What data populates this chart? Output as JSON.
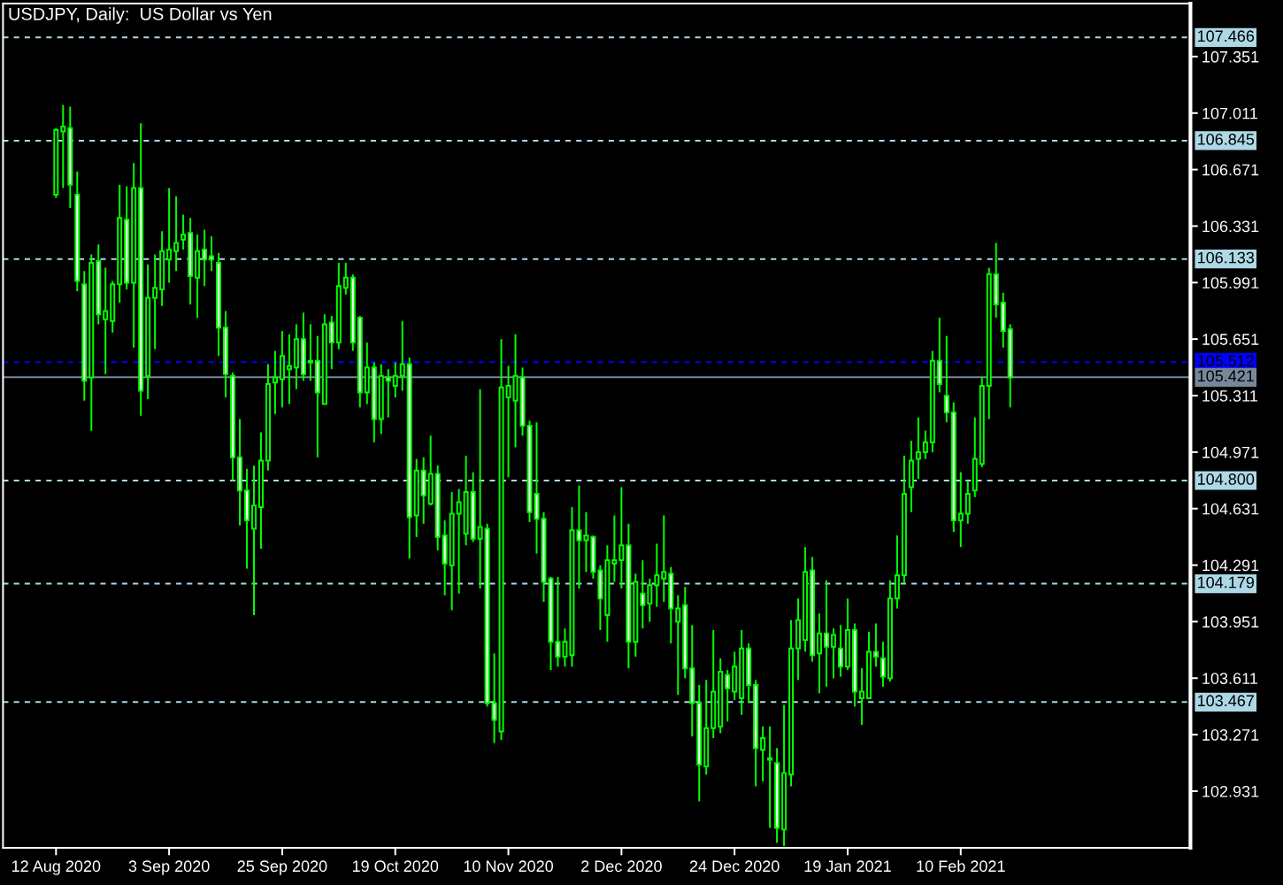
{
  "chart_data": {
    "type": "candlestick",
    "title": "USDJPY, Daily:  US Dollar vs Yen",
    "categories": [
      null,
      null,
      null,
      null,
      null,
      null,
      null,
      "12 Aug 2020",
      null,
      null,
      null,
      null,
      null,
      null,
      null,
      null,
      null,
      null,
      null,
      null,
      null,
      null,
      null,
      "3 Sep 2020",
      null,
      null,
      null,
      null,
      null,
      null,
      null,
      null,
      null,
      null,
      null,
      null,
      null,
      null,
      null,
      "25 Sep 2020",
      null,
      null,
      null,
      null,
      null,
      null,
      null,
      null,
      null,
      null,
      null,
      null,
      null,
      null,
      null,
      "19 Oct 2020",
      null,
      null,
      null,
      null,
      null,
      null,
      null,
      null,
      null,
      null,
      null,
      null,
      null,
      null,
      null,
      "10 Nov 2020",
      null,
      null,
      null,
      null,
      null,
      null,
      null,
      null,
      null,
      null,
      null,
      null,
      null,
      null,
      null,
      "2 Dec 2020",
      null,
      null,
      null,
      null,
      null,
      null,
      null,
      null,
      null,
      null,
      null,
      null,
      null,
      null,
      null,
      "24 Dec 2020",
      null,
      null,
      null,
      null,
      null,
      null,
      null,
      null,
      null,
      null,
      null,
      null,
      null,
      null,
      null,
      "19 Jan 2021",
      null,
      null,
      null,
      null,
      null,
      null,
      null,
      null,
      null,
      null,
      null,
      null,
      null,
      null,
      null,
      "10 Feb 2021",
      null,
      null,
      null,
      null,
      null,
      null,
      null,
      null,
      null,
      null,
      null,
      null,
      null,
      null,
      null,
      null,
      null,
      null,
      null,
      null,
      null,
      null,
      null,
      null,
      null,
      null,
      null,
      null,
      null,
      null,
      null,
      null
    ],
    "ohlc": [
      null,
      null,
      null,
      null,
      null,
      null,
      null,
      [
        106.52,
        106.92,
        106.5,
        106.91
      ],
      [
        106.9,
        107.06,
        106.56,
        106.93
      ],
      [
        106.92,
        107.05,
        106.44,
        106.58
      ],
      [
        106.52,
        106.66,
        105.94,
        106.0
      ],
      [
        105.98,
        106.06,
        105.28,
        105.4
      ],
      [
        105.42,
        106.16,
        105.1,
        106.11
      ],
      [
        106.12,
        106.22,
        105.74,
        105.8
      ],
      [
        105.77,
        106.08,
        105.44,
        105.82
      ],
      [
        105.76,
        106.0,
        105.69,
        105.98
      ],
      [
        105.98,
        106.58,
        105.87,
        106.38
      ],
      [
        106.37,
        106.57,
        105.95,
        105.99
      ],
      [
        105.99,
        106.71,
        105.6,
        106.56
      ],
      [
        106.56,
        106.95,
        105.19,
        105.34
      ],
      [
        105.43,
        106.1,
        105.29,
        105.9
      ],
      [
        105.9,
        106.16,
        105.59,
        105.96
      ],
      [
        105.95,
        106.3,
        105.85,
        106.18
      ],
      [
        106.13,
        106.56,
        105.99,
        106.19
      ],
      [
        106.18,
        106.51,
        106.06,
        106.23
      ],
      [
        106.25,
        106.4,
        106.19,
        106.28
      ],
      [
        106.29,
        106.38,
        105.86,
        106.03
      ],
      [
        106.02,
        106.28,
        105.78,
        106.18
      ],
      [
        106.19,
        106.31,
        105.97,
        106.13
      ],
      [
        106.15,
        106.27,
        106.06,
        106.13
      ],
      [
        106.11,
        106.17,
        105.55,
        105.72
      ],
      [
        105.72,
        105.82,
        105.3,
        105.44
      ],
      [
        105.43,
        105.45,
        104.8,
        104.94
      ],
      [
        104.94,
        105.17,
        104.53,
        104.74
      ],
      [
        104.74,
        104.87,
        104.27,
        104.56
      ],
      [
        104.51,
        104.89,
        103.99,
        104.65
      ],
      [
        104.64,
        105.09,
        104.39,
        104.92
      ],
      [
        104.92,
        105.5,
        104.86,
        105.38
      ],
      [
        105.39,
        105.58,
        105.2,
        105.42
      ],
      [
        105.41,
        105.7,
        105.24,
        105.55
      ],
      [
        105.47,
        105.68,
        105.26,
        105.49
      ],
      [
        105.48,
        105.74,
        105.35,
        105.65
      ],
      [
        105.65,
        105.81,
        105.4,
        105.44
      ],
      [
        105.51,
        105.74,
        105.4,
        105.52
      ],
      [
        105.52,
        105.67,
        104.94,
        105.33
      ],
      [
        105.26,
        105.8,
        105.26,
        105.74
      ],
      [
        105.75,
        105.79,
        105.47,
        105.63
      ],
      [
        105.63,
        106.11,
        105.59,
        105.97
      ],
      [
        105.96,
        106.11,
        105.92,
        106.02
      ],
      [
        106.02,
        106.04,
        105.58,
        105.63
      ],
      [
        105.78,
        105.79,
        105.24,
        105.33
      ],
      [
        105.33,
        105.63,
        105.26,
        105.48
      ],
      [
        105.48,
        105.51,
        105.03,
        105.17
      ],
      [
        105.17,
        105.5,
        105.08,
        105.43
      ],
      [
        105.42,
        105.47,
        105.18,
        105.4
      ],
      [
        105.37,
        105.51,
        105.3,
        105.43
      ],
      [
        105.43,
        105.76,
        105.34,
        105.5
      ],
      [
        105.5,
        105.54,
        104.33,
        104.58
      ],
      [
        104.59,
        104.93,
        104.46,
        104.86
      ],
      [
        104.86,
        104.94,
        104.54,
        104.71
      ],
      [
        104.66,
        105.07,
        104.65,
        104.84
      ],
      [
        104.84,
        104.89,
        104.38,
        104.46
      ],
      [
        104.47,
        104.56,
        104.11,
        104.3
      ],
      [
        104.29,
        104.73,
        104.02,
        104.6
      ],
      [
        104.6,
        104.75,
        104.12,
        104.67
      ],
      [
        104.48,
        104.95,
        104.41,
        104.73
      ],
      [
        104.73,
        104.85,
        104.43,
        104.45
      ],
      [
        104.45,
        105.35,
        104.15,
        104.52
      ],
      [
        104.51,
        104.54,
        103.44,
        103.46
      ],
      [
        103.46,
        103.76,
        103.22,
        103.36
      ],
      [
        103.29,
        105.65,
        103.24,
        105.36
      ],
      [
        105.3,
        105.49,
        104.82,
        105.37
      ],
      [
        105.28,
        105.68,
        105.0,
        105.43
      ],
      [
        105.42,
        105.48,
        105.07,
        105.13
      ],
      [
        105.13,
        105.16,
        104.55,
        104.61
      ],
      [
        104.72,
        105.15,
        104.36,
        104.57
      ],
      [
        104.57,
        104.61,
        104.07,
        104.19
      ],
      [
        104.21,
        104.22,
        103.66,
        103.83
      ],
      [
        103.83,
        104.22,
        103.68,
        103.74
      ],
      [
        103.74,
        103.91,
        103.68,
        103.83
      ],
      [
        103.75,
        104.64,
        103.68,
        104.5
      ],
      [
        104.5,
        104.77,
        104.15,
        104.44
      ],
      [
        104.44,
        104.61,
        104.25,
        104.47
      ],
      [
        104.46,
        104.47,
        104.21,
        104.25
      ],
      [
        104.26,
        104.29,
        103.9,
        104.09
      ],
      [
        103.99,
        104.41,
        103.83,
        104.32
      ],
      [
        104.3,
        104.59,
        104.19,
        104.32
      ],
      [
        104.32,
        104.76,
        104.15,
        104.41
      ],
      [
        104.41,
        104.54,
        103.67,
        103.83
      ],
      [
        103.83,
        104.24,
        103.74,
        104.19
      ],
      [
        104.12,
        104.32,
        103.91,
        104.05
      ],
      [
        104.06,
        104.21,
        103.95,
        104.17
      ],
      [
        104.17,
        104.42,
        104.04,
        104.23
      ],
      [
        104.21,
        104.59,
        104.07,
        104.25
      ],
      [
        104.24,
        104.28,
        103.82,
        104.03
      ],
      [
        103.95,
        104.11,
        103.51,
        104.03
      ],
      [
        104.05,
        104.16,
        103.61,
        103.67
      ],
      [
        103.67,
        103.93,
        103.26,
        103.46
      ],
      [
        103.46,
        103.57,
        102.87,
        103.09
      ],
      [
        103.08,
        103.6,
        103.03,
        103.31
      ],
      [
        103.31,
        103.9,
        103.25,
        103.53
      ],
      [
        103.32,
        103.73,
        103.28,
        103.65
      ],
      [
        103.63,
        103.66,
        103.35,
        103.55
      ],
      [
        103.53,
        103.77,
        103.48,
        103.68
      ],
      [
        103.49,
        103.9,
        103.39,
        103.79
      ],
      [
        103.79,
        103.82,
        103.46,
        103.57
      ],
      [
        103.57,
        103.6,
        102.96,
        103.19
      ],
      [
        103.18,
        103.32,
        102.99,
        103.25
      ],
      [
        103.13,
        103.32,
        102.71,
        103.12
      ],
      [
        103.1,
        103.19,
        102.62,
        102.71
      ],
      [
        102.7,
        103.45,
        102.6,
        103.04
      ],
      [
        103.03,
        103.96,
        102.96,
        103.79
      ],
      [
        103.79,
        104.09,
        103.6,
        103.96
      ],
      [
        103.84,
        104.4,
        103.77,
        104.25
      ],
      [
        104.26,
        104.34,
        103.71,
        103.75
      ],
      [
        103.76,
        104.0,
        103.52,
        103.88
      ],
      [
        103.88,
        104.2,
        103.56,
        103.8
      ],
      [
        103.8,
        103.91,
        103.61,
        103.87
      ],
      [
        103.79,
        103.93,
        103.62,
        103.68
      ],
      [
        103.68,
        104.09,
        103.66,
        103.9
      ],
      [
        103.9,
        103.94,
        103.44,
        103.53
      ],
      [
        103.49,
        103.67,
        103.33,
        103.53
      ],
      [
        103.49,
        103.89,
        103.49,
        103.77
      ],
      [
        103.77,
        103.94,
        103.68,
        103.74
      ],
      [
        103.73,
        103.83,
        103.56,
        103.62
      ],
      [
        103.61,
        104.2,
        103.59,
        104.09
      ],
      [
        104.09,
        104.47,
        104.03,
        104.23
      ],
      [
        104.23,
        104.95,
        104.18,
        104.72
      ],
      [
        104.76,
        105.04,
        104.61,
        104.92
      ],
      [
        104.93,
        105.18,
        104.81,
        104.97
      ],
      [
        104.97,
        105.1,
        104.93,
        105.03
      ],
      [
        105.03,
        105.58,
        104.97,
        105.52
      ],
      [
        105.52,
        105.78,
        105.33,
        105.38
      ],
      [
        105.31,
        105.67,
        105.15,
        105.21
      ],
      [
        105.21,
        105.27,
        104.49,
        104.56
      ],
      [
        104.56,
        104.85,
        104.4,
        104.6
      ],
      [
        104.6,
        104.8,
        104.54,
        104.72
      ],
      [
        104.74,
        105.18,
        104.7,
        104.93
      ],
      [
        104.9,
        105.42,
        104.88,
        105.37
      ],
      [
        105.37,
        106.08,
        105.17,
        106.04
      ],
      [
        106.04,
        106.23,
        105.78,
        105.86
      ],
      [
        105.87,
        105.93,
        105.6,
        105.7
      ],
      [
        105.71,
        105.74,
        105.24,
        105.42
      ],
      null,
      null,
      null,
      null,
      null,
      null,
      null,
      null,
      null,
      null,
      null,
      null,
      null,
      null,
      null,
      null,
      null,
      null,
      null,
      null,
      null,
      null,
      null,
      null,
      null
    ],
    "color": "#00ff00",
    "colors": [
      null,
      null,
      null,
      null,
      null,
      null,
      null,
      "#000000",
      "#000000",
      "#ffffff",
      "#ffffff",
      "#ffffff",
      "#000000",
      "#ffffff",
      "#000000",
      "#000000",
      "#000000",
      "#ffffff",
      "#000000",
      "#ffffff",
      "#000000",
      "#000000",
      "#000000",
      "#000000",
      "#000000",
      "#000000",
      "#ffffff",
      "#000000",
      "#ffffff",
      "#ffffff",
      "#ffffff",
      "#ffffff",
      "#ffffff",
      "#ffffff",
      "#ffffff",
      "#000000",
      "#000000",
      "#000000",
      "#000000",
      "#000000",
      "#000000",
      "#000000",
      "#ffffff",
      "#000000",
      "#ffffff",
      "#000000",
      "#ffffff",
      "#000000",
      "#000000",
      "#ffffff",
      "#ffffff",
      "#000000",
      "#ffffff",
      "#000000",
      "#ffffff",
      "#000000",
      "#000000",
      "#ffffff",
      "#000000",
      "#ffffff",
      "#000000",
      "#ffffff",
      "#ffffff",
      "#000000",
      "#000000",
      "#000000",
      "#ffffff",
      "#000000",
      "#ffffff",
      "#ffffff",
      "#000000",
      "#000000",
      "#000000",
      "#ffffff",
      "#ffffff",
      "#ffffff",
      "#ffffff",
      "#ffffff",
      "#ffffff",
      "#000000",
      "#000000",
      "#ffffff",
      "#000000",
      "#ffffff",
      "#ffffff",
      "#000000",
      "#000000",
      "#000000",
      "#ffffff",
      "#000000",
      "#ffffff",
      "#000000",
      "#000000",
      "#000000",
      "#ffffff",
      "#000000",
      "#ffffff",
      "#ffffff",
      "#ffffff",
      "#000000",
      "#000000",
      "#000000",
      "#ffffff",
      "#000000",
      "#000000",
      "#ffffff",
      "#ffffff",
      "#000000",
      "#ffffff",
      "#ffffff",
      "#000000",
      "#000000",
      "#000000",
      "#000000",
      "#ffffff",
      "#000000",
      "#ffffff",
      "#000000",
      "#ffffff",
      "#000000",
      "#ffffff",
      "#000000",
      "#000000",
      "#ffffff",
      "#ffffff",
      "#000000",
      "#000000",
      "#000000",
      "#000000",
      "#000000",
      "#000000",
      "#000000",
      "#ffffff",
      "#ffffff",
      "#ffffff",
      "#000000",
      "#000000",
      "#000000",
      "#000000",
      "#000000",
      "#ffffff",
      "#ffffff",
      "#ffffff",
      null,
      null,
      null,
      null,
      null,
      null,
      null,
      null,
      null,
      null,
      null,
      null,
      null,
      null,
      null,
      null,
      null,
      null,
      null,
      null,
      null,
      null,
      null,
      null,
      null
    ],
    "ylim": [
      102.59,
      107.67
    ],
    "yticks": [
      107.351,
      107.011,
      106.671,
      106.331,
      105.991,
      105.651,
      105.311,
      104.971,
      104.631,
      104.291,
      103.951,
      103.611,
      103.271,
      102.931
    ],
    "ref_lines": [
      {
        "axis": "y",
        "value": 107.466,
        "label": "107.466",
        "color": "#add8e6",
        "line_style": "dashed"
      },
      {
        "axis": "y",
        "value": 106.845,
        "label": "106.845",
        "color": "#add8e6",
        "line_style": "dashed"
      },
      {
        "axis": "y",
        "value": 106.133,
        "label": "106.133",
        "color": "#add8e6",
        "line_style": "dashed"
      },
      {
        "axis": "y",
        "value": 104.8,
        "label": "104.800",
        "color": "#add8e6",
        "line_style": "dashed"
      },
      {
        "axis": "y",
        "value": 104.179,
        "label": "104.179",
        "color": "#add8e6",
        "line_style": "dashed"
      },
      {
        "axis": "y",
        "value": 103.467,
        "label": "103.467",
        "color": "#add8e6",
        "line_style": "dashed"
      },
      {
        "axis": "y",
        "value": 105.512,
        "label": "105.512",
        "color": "#0000ff",
        "line_style": "dashed"
      },
      {
        "axis": "y",
        "value": 105.421,
        "label": "105.421",
        "color": "#778899",
        "line_style": "solid"
      }
    ]
  }
}
